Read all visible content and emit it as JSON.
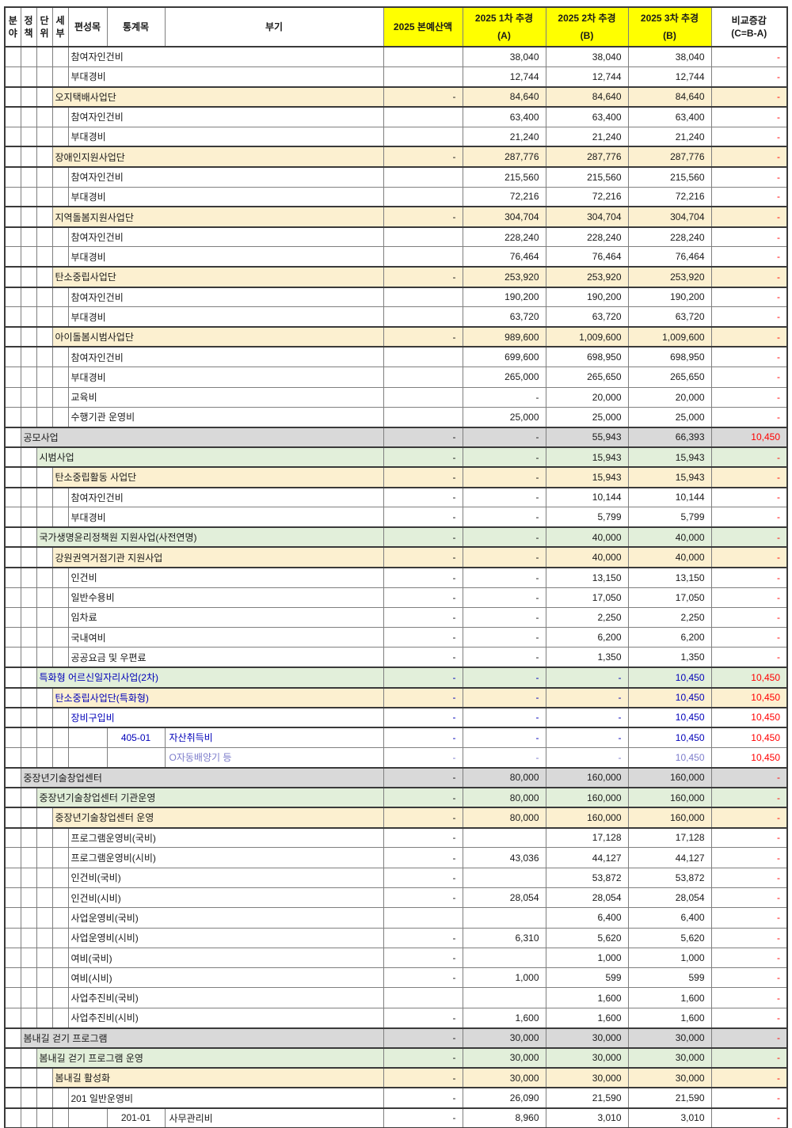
{
  "header": {
    "narrow_cols": [
      "분\n야",
      "정\n책",
      "단\n위",
      "세\n부"
    ],
    "col_pyeonseongmok": "편성목",
    "col_tonggyemok": "통계목",
    "col_bugi": "부기",
    "col_budget": "2025 본예산액",
    "supp1": {
      "label": "2025 1차 추경",
      "sub": "(A)"
    },
    "supp2": {
      "label": "2025 2차 추경",
      "sub": "(B)"
    },
    "supp3": {
      "label": "2025 3차 추경",
      "sub": "(B)"
    },
    "col_compare": "비교증감\n(C=B-A)"
  },
  "colors": {
    "header_highlight": "#ffff00",
    "section_level1": "#d9d9d9",
    "section_level2": "#e2efda",
    "section_level3": "#fcf0d0",
    "compare_text": "#ff0000",
    "emphasis_text": "#0000b8",
    "emphasis_text_light": "#7d7dcb"
  },
  "rows": [
    {
      "type": "item",
      "label": "참여자인건비",
      "values": [
        "",
        "38,040",
        "38,040",
        "38,040",
        "-"
      ]
    },
    {
      "type": "item",
      "label": "부대경비",
      "values": [
        "",
        "12,744",
        "12,744",
        "12,744",
        "-"
      ]
    },
    {
      "type": "beige",
      "label": "오지택배사업단",
      "values": [
        "-",
        "84,640",
        "84,640",
        "84,640",
        "-"
      ]
    },
    {
      "type": "item",
      "label": "참여자인건비",
      "values": [
        "",
        "63,400",
        "63,400",
        "63,400",
        "-"
      ]
    },
    {
      "type": "item",
      "label": "부대경비",
      "values": [
        "",
        "21,240",
        "21,240",
        "21,240",
        "-"
      ]
    },
    {
      "type": "beige",
      "label": "장애인지원사업단",
      "values": [
        "-",
        "287,776",
        "287,776",
        "287,776",
        "-"
      ]
    },
    {
      "type": "item",
      "label": "참여자인건비",
      "values": [
        "",
        "215,560",
        "215,560",
        "215,560",
        "-"
      ]
    },
    {
      "type": "item",
      "label": "부대경비",
      "values": [
        "",
        "72,216",
        "72,216",
        "72,216",
        "-"
      ]
    },
    {
      "type": "beige",
      "label": "지역돌봄지원사업단",
      "values": [
        "-",
        "304,704",
        "304,704",
        "304,704",
        "-"
      ]
    },
    {
      "type": "item",
      "label": "참여자인건비",
      "values": [
        "",
        "228,240",
        "228,240",
        "228,240",
        "-"
      ]
    },
    {
      "type": "item",
      "label": "부대경비",
      "values": [
        "",
        "76,464",
        "76,464",
        "76,464",
        "-"
      ]
    },
    {
      "type": "beige",
      "label": "탄소중립사업단",
      "values": [
        "-",
        "253,920",
        "253,920",
        "253,920",
        "-"
      ]
    },
    {
      "type": "item",
      "label": "참여자인건비",
      "values": [
        "",
        "190,200",
        "190,200",
        "190,200",
        "-"
      ]
    },
    {
      "type": "item",
      "label": "부대경비",
      "values": [
        "",
        "63,720",
        "63,720",
        "63,720",
        "-"
      ]
    },
    {
      "type": "beige",
      "label": "아이돌봄시범사업단",
      "values": [
        "-",
        "989,600",
        "1,009,600",
        "1,009,600",
        "-"
      ]
    },
    {
      "type": "item",
      "label": "참여자인건비",
      "values": [
        "",
        "699,600",
        "698,950",
        "698,950",
        "-"
      ]
    },
    {
      "type": "item",
      "label": "부대경비",
      "values": [
        "",
        "265,000",
        "265,650",
        "265,650",
        "-"
      ]
    },
    {
      "type": "item",
      "label": "교육비",
      "values": [
        "",
        "-",
        "20,000",
        "20,000",
        "-"
      ]
    },
    {
      "type": "item",
      "label": "수행기관 운영비",
      "values": [
        "",
        "25,000",
        "25,000",
        "25,000",
        "-"
      ]
    },
    {
      "type": "gray",
      "label": "공모사업",
      "values": [
        "-",
        "-",
        "55,943",
        "66,393",
        "10,450"
      ]
    },
    {
      "type": "green",
      "label": "시범사업",
      "values": [
        "-",
        "-",
        "15,943",
        "15,943",
        "-"
      ]
    },
    {
      "type": "beige",
      "label": "탄소중립활동 사업단",
      "values": [
        "-",
        "-",
        "15,943",
        "15,943",
        "-"
      ]
    },
    {
      "type": "item",
      "label": "참여자인건비",
      "values": [
        "-",
        "-",
        "10,144",
        "10,144",
        "-"
      ]
    },
    {
      "type": "item",
      "label": "부대경비",
      "values": [
        "-",
        "-",
        "5,799",
        "5,799",
        "-"
      ]
    },
    {
      "type": "green",
      "label": "국가생명윤리정책원 지원사업(사전연명)",
      "values": [
        "-",
        "-",
        "40,000",
        "40,000",
        "-"
      ]
    },
    {
      "type": "beige",
      "label": "강원권역거점기관 지원사업",
      "values": [
        "-",
        "-",
        "40,000",
        "40,000",
        "-"
      ]
    },
    {
      "type": "item",
      "label": "인건비",
      "values": [
        "-",
        "-",
        "13,150",
        "13,150",
        "-"
      ]
    },
    {
      "type": "item",
      "label": "일반수용비",
      "values": [
        "-",
        "-",
        "17,050",
        "17,050",
        "-"
      ]
    },
    {
      "type": "item",
      "label": "임차료",
      "values": [
        "-",
        "-",
        "2,250",
        "2,250",
        "-"
      ]
    },
    {
      "type": "item",
      "label": "국내여비",
      "values": [
        "-",
        "-",
        "6,200",
        "6,200",
        "-"
      ]
    },
    {
      "type": "item",
      "label": "공공요금 및 우편료",
      "values": [
        "-",
        "-",
        "1,350",
        "1,350",
        "-"
      ]
    },
    {
      "type": "green",
      "tone": "blue",
      "label": "특화형 어르신일자리사업(2차)",
      "values": [
        "-",
        "-",
        "-",
        "10,450",
        "10,450"
      ]
    },
    {
      "type": "beige",
      "tone": "blue",
      "label": "탄소중립사업단(특화형)",
      "values": [
        "-",
        "-",
        "-",
        "10,450",
        "10,450"
      ]
    },
    {
      "type": "item",
      "tone": "blue",
      "label": "장비구입비",
      "values": [
        "-",
        "-",
        "-",
        "10,450",
        "10,450"
      ]
    },
    {
      "type": "stat",
      "tone": "blue",
      "code": "405-01",
      "note": "자산취득비",
      "values": [
        "-",
        "-",
        "-",
        "10,450",
        "10,450"
      ]
    },
    {
      "type": "note",
      "tone": "lightblue",
      "note": "O자동배양기 등",
      "values": [
        "-",
        "-",
        "-",
        "10,450",
        "10,450"
      ]
    },
    {
      "type": "gray",
      "label": "중장년기술창업센터",
      "values": [
        "-",
        "80,000",
        "160,000",
        "160,000",
        "-"
      ]
    },
    {
      "type": "green",
      "label": "중장년기술창업센터 기관운영",
      "values": [
        "-",
        "80,000",
        "160,000",
        "160,000",
        "-"
      ]
    },
    {
      "type": "beige",
      "label": "중장년기술창업센터 운영",
      "values": [
        "-",
        "80,000",
        "160,000",
        "160,000",
        "-"
      ]
    },
    {
      "type": "item",
      "label": "프로그램운영비(국비)",
      "values": [
        "-",
        "",
        "17,128",
        "17,128",
        "-"
      ]
    },
    {
      "type": "item",
      "label": "프로그램운영비(시비)",
      "values": [
        "-",
        "43,036",
        "44,127",
        "44,127",
        "-"
      ]
    },
    {
      "type": "item",
      "label": "인건비(국비)",
      "values": [
        "-",
        "",
        "53,872",
        "53,872",
        "-"
      ]
    },
    {
      "type": "item",
      "label": "인건비(시비)",
      "values": [
        "-",
        "28,054",
        "28,054",
        "28,054",
        "-"
      ]
    },
    {
      "type": "item",
      "label": "사업운영비(국비)",
      "values": [
        "",
        "",
        "6,400",
        "6,400",
        "-"
      ]
    },
    {
      "type": "item",
      "label": "사업운영비(시비)",
      "values": [
        "-",
        "6,310",
        "5,620",
        "5,620",
        "-"
      ]
    },
    {
      "type": "item",
      "label": "여비(국비)",
      "values": [
        "-",
        "",
        "1,000",
        "1,000",
        "-"
      ]
    },
    {
      "type": "item",
      "label": "여비(시비)",
      "values": [
        "-",
        "1,000",
        "599",
        "599",
        "-"
      ]
    },
    {
      "type": "item",
      "label": "사업추진비(국비)",
      "values": [
        "",
        "",
        "1,600",
        "1,600",
        "-"
      ]
    },
    {
      "type": "item",
      "label": "사업추진비(시비)",
      "values": [
        "-",
        "1,600",
        "1,600",
        "1,600",
        "-"
      ]
    },
    {
      "type": "gray",
      "label": "봄내길 걷기 프로그램",
      "values": [
        "-",
        "30,000",
        "30,000",
        "30,000",
        "-"
      ]
    },
    {
      "type": "green",
      "label": "봄내길 걷기 프로그램 운영",
      "values": [
        "-",
        "30,000",
        "30,000",
        "30,000",
        "-"
      ]
    },
    {
      "type": "beige",
      "label": "봄내길 활성화",
      "values": [
        "-",
        "30,000",
        "30,000",
        "30,000",
        "-"
      ]
    },
    {
      "type": "item",
      "label": "201 일반운영비",
      "values": [
        "-",
        "26,090",
        "21,590",
        "21,590",
        "-"
      ]
    },
    {
      "type": "stat",
      "code": "201-01",
      "note": "사무관리비",
      "values": [
        "-",
        "8,960",
        "3,010",
        "3,010",
        "-"
      ]
    }
  ]
}
